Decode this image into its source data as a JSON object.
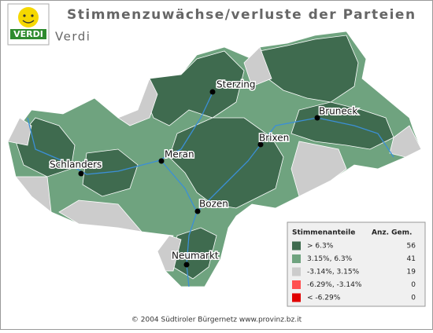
{
  "header": {
    "title": "Stimmenzuwächse/verluste der Parteien",
    "subtitle": "Verdi",
    "logo": "VERDI"
  },
  "cities": [
    "Sterzing",
    "Bruneck",
    "Brixen",
    "Meran",
    "Schlanders",
    "Bozen",
    "Neumarkt"
  ],
  "legend": {
    "title": "Stimmenanteile",
    "count_header": "Anz. Gem.",
    "entries": [
      {
        "label": "> 6.3%",
        "count": 56,
        "color": "#3f6b4f"
      },
      {
        "label": "3.15%, 6.3%",
        "count": 41,
        "color": "#6fa37f"
      },
      {
        "label": "-3.14%, 3.15%",
        "count": 19,
        "color": "#cccccc"
      },
      {
        "label": "-6.29%, -3.14%",
        "count": 0,
        "color": "#ff5050"
      },
      {
        "label": "< -6.29%",
        "count": 0,
        "color": "#e00000"
      }
    ]
  },
  "footer": "© 2004 Südtiroler Bürgernetz www.provinz.bz.it"
}
